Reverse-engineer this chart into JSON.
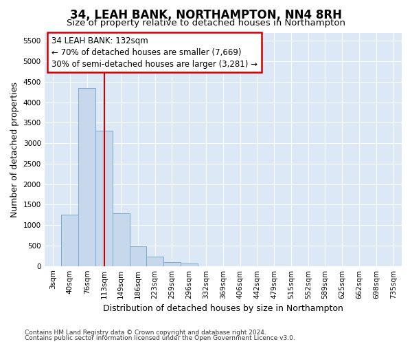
{
  "title": "34, LEAH BANK, NORTHAMPTON, NN4 8RH",
  "subtitle": "Size of property relative to detached houses in Northampton",
  "xlabel": "Distribution of detached houses by size in Northampton",
  "ylabel": "Number of detached properties",
  "footnote1": "Contains HM Land Registry data © Crown copyright and database right 2024.",
  "footnote2": "Contains public sector information licensed under the Open Government Licence v3.0.",
  "bar_color": "#c8d8ec",
  "bar_edge_color": "#7aaacf",
  "annotation_line1": "34 LEAH BANK: 132sqm",
  "annotation_line2": "← 70% of detached houses are smaller (7,669)",
  "annotation_line3": "30% of semi-detached houses are larger (3,281) →",
  "marker_color": "#cc0000",
  "categories": [
    "3sqm",
    "40sqm",
    "76sqm",
    "113sqm",
    "149sqm",
    "186sqm",
    "223sqm",
    "259sqm",
    "296sqm",
    "332sqm",
    "369sqm",
    "406sqm",
    "442sqm",
    "479sqm",
    "515sqm",
    "552sqm",
    "589sqm",
    "625sqm",
    "662sqm",
    "698sqm",
    "735sqm"
  ],
  "values": [
    0,
    1260,
    4350,
    3300,
    1290,
    480,
    230,
    100,
    60,
    0,
    0,
    0,
    0,
    0,
    0,
    0,
    0,
    0,
    0,
    0,
    0
  ],
  "ylim": [
    0,
    5700
  ],
  "yticks": [
    0,
    500,
    1000,
    1500,
    2000,
    2500,
    3000,
    3500,
    4000,
    4500,
    5000,
    5500
  ],
  "background_color": "#dce8f5",
  "grid_color": "#ffffff",
  "fig_background": "#ffffff",
  "title_fontsize": 12,
  "subtitle_fontsize": 9.5,
  "axis_label_fontsize": 9,
  "tick_fontsize": 7.5,
  "footnote_fontsize": 6.5,
  "annotation_fontsize": 8.5
}
